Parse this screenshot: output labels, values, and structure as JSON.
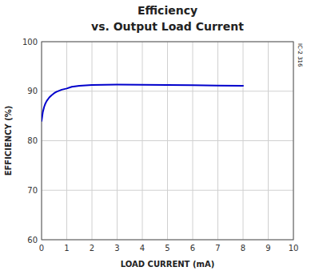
{
  "chart_data": {
    "type": "line",
    "title": "Efficiency",
    "subtitle": "vs. Output Load Current",
    "xlabel": "LOAD CURRENT (mA)",
    "ylabel": "EFFICIENCY (%)",
    "annotations": [
      "IC-2 316"
    ],
    "x": [
      0.0,
      0.05,
      0.1,
      0.15,
      0.2,
      0.3,
      0.4,
      0.5,
      0.6,
      0.7,
      0.8,
      1.0,
      1.2,
      1.5,
      2.0,
      2.5,
      3.0,
      4.0,
      5.0,
      6.0,
      7.0,
      8.0
    ],
    "values": [
      84.0,
      85.8,
      86.8,
      87.5,
      88.0,
      88.7,
      89.2,
      89.6,
      89.9,
      90.1,
      90.3,
      90.55,
      90.9,
      91.1,
      91.25,
      91.3,
      91.32,
      91.3,
      91.25,
      91.2,
      91.15,
      91.1
    ],
    "color": "#0000CC",
    "xlim": [
      0,
      10
    ],
    "ylim": [
      60,
      100
    ],
    "xticks": [
      0,
      1,
      2,
      3,
      4,
      5,
      6,
      7,
      8,
      9,
      10
    ],
    "yticks": [
      60,
      70,
      80,
      90,
      100
    ],
    "grid": true
  }
}
